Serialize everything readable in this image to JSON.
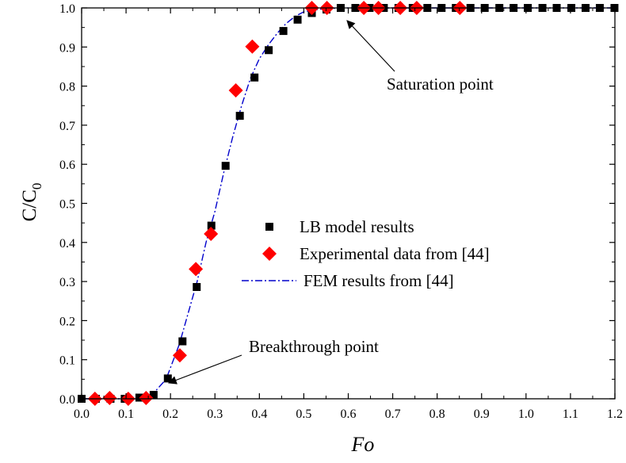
{
  "chart_data": {
    "type": "scatter",
    "xlabel": "Fo",
    "ylabel": {
      "main": "C/C",
      "sub": "0"
    },
    "xlim": [
      0.0,
      1.2
    ],
    "ylim": [
      0.0,
      1.0
    ],
    "x_ticks": [
      "0.0",
      "0.1",
      "0.2",
      "0.3",
      "0.4",
      "0.5",
      "0.6",
      "0.7",
      "0.8",
      "0.9",
      "1.0",
      "1.1",
      "1.2"
    ],
    "y_ticks": [
      "0.0",
      "0.1",
      "0.2",
      "0.3",
      "0.4",
      "0.5",
      "0.6",
      "0.7",
      "0.8",
      "0.9",
      "1.0"
    ],
    "grid": false,
    "legend_position": "center-right",
    "series": [
      {
        "name": "LB model results",
        "marker": "square",
        "color": "#000000",
        "points": [
          [
            0.0,
            0.0
          ],
          [
            0.032,
            0.0
          ],
          [
            0.065,
            0.0
          ],
          [
            0.097,
            0.0
          ],
          [
            0.13,
            0.003
          ],
          [
            0.162,
            0.01
          ],
          [
            0.194,
            0.052
          ],
          [
            0.227,
            0.147
          ],
          [
            0.259,
            0.286
          ],
          [
            0.292,
            0.443
          ],
          [
            0.324,
            0.596
          ],
          [
            0.356,
            0.724
          ],
          [
            0.389,
            0.822
          ],
          [
            0.421,
            0.892
          ],
          [
            0.454,
            0.941
          ],
          [
            0.486,
            0.97
          ],
          [
            0.518,
            0.987
          ],
          [
            0.551,
            0.996
          ],
          [
            0.583,
            1.0
          ],
          [
            0.616,
            1.0
          ],
          [
            0.648,
            1.0
          ],
          [
            0.68,
            1.0
          ],
          [
            0.713,
            1.0
          ],
          [
            0.745,
            1.0
          ],
          [
            0.778,
            1.0
          ],
          [
            0.81,
            1.0
          ],
          [
            0.842,
            1.0
          ],
          [
            0.875,
            1.0
          ],
          [
            0.907,
            1.0
          ],
          [
            0.94,
            1.0
          ],
          [
            0.972,
            1.0
          ],
          [
            1.004,
            1.0
          ],
          [
            1.037,
            1.0
          ],
          [
            1.069,
            1.0
          ],
          [
            1.102,
            1.0
          ],
          [
            1.134,
            1.0
          ],
          [
            1.166,
            1.0
          ],
          [
            1.199,
            1.0
          ]
        ]
      },
      {
        "name": "Experimental data from [44]",
        "marker": "diamond",
        "color": "#ff0000",
        "points": [
          [
            0.03,
            0.0
          ],
          [
            0.063,
            0.002
          ],
          [
            0.105,
            0.0
          ],
          [
            0.145,
            0.002
          ],
          [
            0.221,
            0.111
          ],
          [
            0.257,
            0.332
          ],
          [
            0.291,
            0.422
          ],
          [
            0.347,
            0.789
          ],
          [
            0.384,
            0.901
          ],
          [
            0.518,
            1.0
          ],
          [
            0.552,
            1.0
          ],
          [
            0.635,
            1.0
          ],
          [
            0.668,
            1.0
          ],
          [
            0.717,
            1.0
          ],
          [
            0.754,
            1.0
          ],
          [
            0.851,
            1.0
          ]
        ]
      },
      {
        "name": "FEM results from [44]",
        "marker": "line-dashdot",
        "color": "#0000cc",
        "points": [
          [
            0.0,
            0.0
          ],
          [
            0.1,
            0.0
          ],
          [
            0.13,
            0.003
          ],
          [
            0.16,
            0.012
          ],
          [
            0.19,
            0.05
          ],
          [
            0.22,
            0.14
          ],
          [
            0.24,
            0.22
          ],
          [
            0.26,
            0.3
          ],
          [
            0.28,
            0.4
          ],
          [
            0.3,
            0.48
          ],
          [
            0.32,
            0.58
          ],
          [
            0.34,
            0.67
          ],
          [
            0.36,
            0.75
          ],
          [
            0.38,
            0.82
          ],
          [
            0.4,
            0.87
          ],
          [
            0.42,
            0.905
          ],
          [
            0.44,
            0.935
          ],
          [
            0.46,
            0.96
          ],
          [
            0.48,
            0.978
          ],
          [
            0.5,
            0.99
          ],
          [
            0.53,
            0.996
          ],
          [
            0.56,
            0.999
          ],
          [
            0.6,
            1.0
          ],
          [
            1.2,
            1.0
          ]
        ]
      }
    ],
    "annotations": [
      {
        "text": "Saturation point",
        "point": [
          0.56,
          0.995
        ],
        "label_at": [
          0.635,
          0.91
        ]
      },
      {
        "text": "Breakthrough point",
        "point": [
          0.193,
          0.022
        ],
        "label_at": [
          0.3,
          0.105
        ]
      }
    ]
  }
}
